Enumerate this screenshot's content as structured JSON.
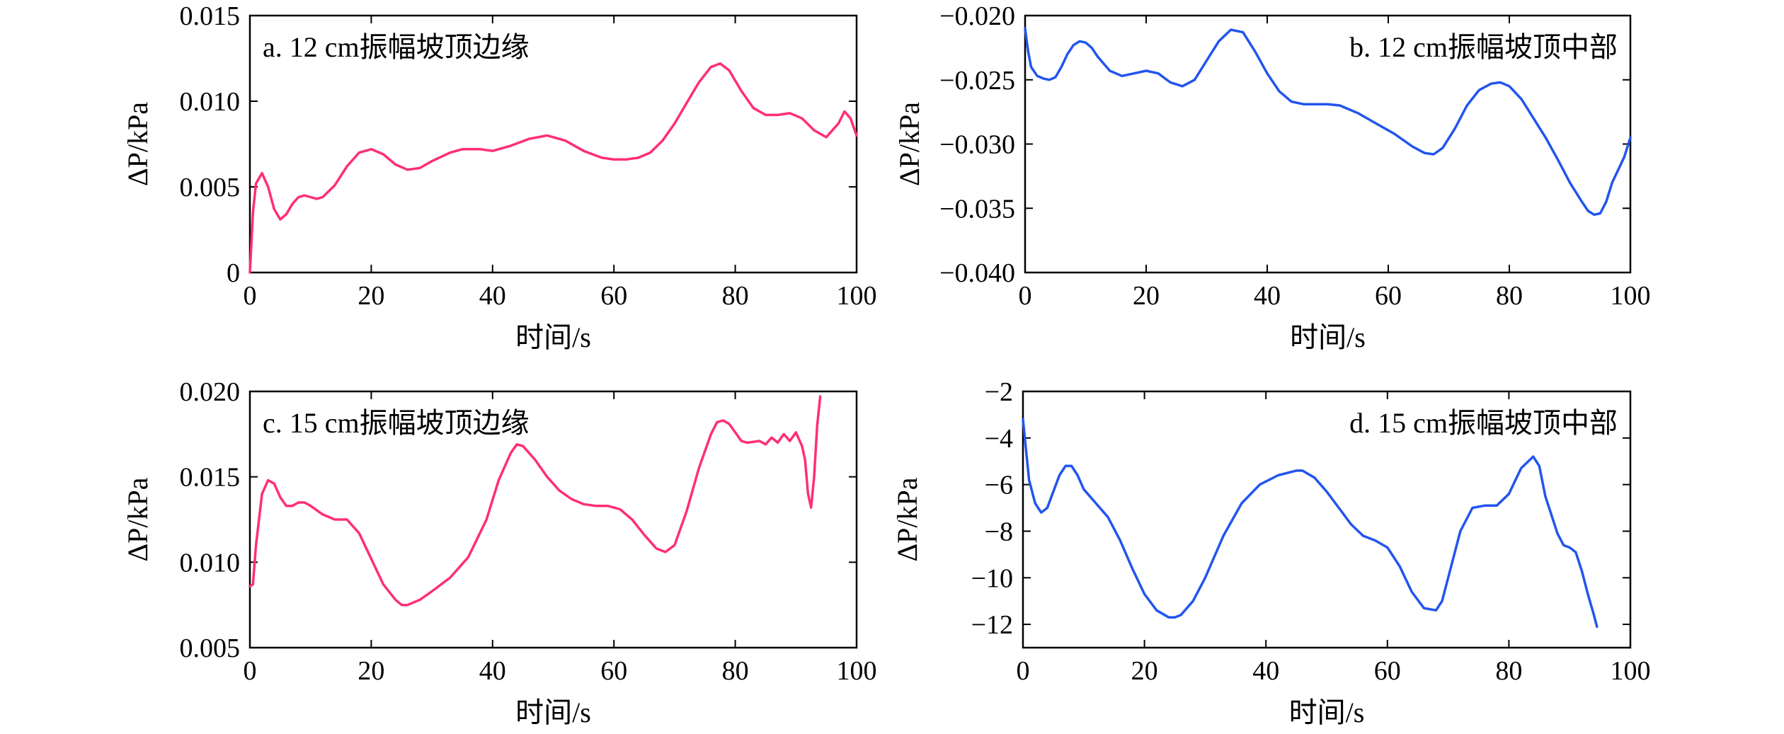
{
  "chart_data": [
    {
      "type": "line",
      "panel": "a",
      "title": "a. 12 cm振幅坡顶边缘",
      "title_pos": "top-left",
      "xlabel": "时间/s",
      "ylabel": "ΔP/kPa",
      "xlim": [
        0,
        100
      ],
      "ylim": [
        0,
        0.015
      ],
      "xticks": [
        "0",
        "20",
        "40",
        "60",
        "80",
        "100"
      ],
      "yticks": [
        "0",
        "0.005",
        "0.010",
        "0.015"
      ],
      "color": "#ff2e74",
      "series": [
        {
          "x": [
            0,
            0.5,
            1,
            2,
            3,
            4,
            5,
            6,
            7,
            8,
            9,
            10,
            11,
            12,
            14,
            16,
            18,
            20,
            22,
            24,
            26,
            28,
            30,
            33,
            35,
            38,
            40,
            43,
            46,
            49,
            52,
            55,
            58,
            60,
            62,
            64,
            66,
            68,
            70,
            72,
            74,
            76,
            77.5,
            79,
            81,
            83,
            85,
            87,
            89,
            91,
            93,
            95,
            97,
            98,
            99,
            100
          ],
          "y": [
            0.0,
            0.0035,
            0.0052,
            0.0058,
            0.005,
            0.0037,
            0.0031,
            0.0034,
            0.004,
            0.0044,
            0.0045,
            0.0044,
            0.0043,
            0.0044,
            0.0051,
            0.0062,
            0.007,
            0.0072,
            0.0069,
            0.0063,
            0.006,
            0.0061,
            0.0065,
            0.007,
            0.0072,
            0.0072,
            0.0071,
            0.0074,
            0.0078,
            0.008,
            0.0077,
            0.0071,
            0.0067,
            0.0066,
            0.0066,
            0.0067,
            0.007,
            0.0077,
            0.0087,
            0.0099,
            0.0111,
            0.012,
            0.0122,
            0.0118,
            0.0106,
            0.0096,
            0.0092,
            0.0092,
            0.0093,
            0.009,
            0.0083,
            0.0079,
            0.0087,
            0.0094,
            0.009,
            0.008
          ]
        }
      ]
    },
    {
      "type": "line",
      "panel": "b",
      "title": "b. 12 cm振幅坡顶中部",
      "title_pos": "top-right",
      "xlabel": "时间/s",
      "ylabel": "ΔP/kPa",
      "xlim": [
        0,
        100
      ],
      "ylim": [
        -0.04,
        -0.02
      ],
      "xticks": [
        "0",
        "20",
        "40",
        "60",
        "80",
        "100"
      ],
      "yticks": [
        "−0.040",
        "−0.035",
        "−0.030",
        "−0.025",
        "−0.020"
      ],
      "color": "#2255ee",
      "series": [
        {
          "x": [
            0,
            0.5,
            1,
            2,
            3,
            4,
            5,
            6,
            7,
            8,
            9,
            10,
            11,
            12,
            14,
            16,
            18,
            20,
            22,
            24,
            26,
            28,
            30,
            32,
            34,
            36,
            38,
            40,
            42,
            44,
            46,
            48,
            50,
            52,
            55,
            58,
            61,
            64,
            66,
            67.5,
            69,
            71,
            73,
            75,
            77,
            78.5,
            80,
            82,
            84,
            86,
            88,
            90,
            92,
            93,
            94,
            95,
            96,
            97,
            98,
            99,
            100
          ],
          "y": [
            -0.021,
            -0.0228,
            -0.024,
            -0.0247,
            -0.0249,
            -0.025,
            -0.0248,
            -0.024,
            -0.023,
            -0.0223,
            -0.022,
            -0.0221,
            -0.0225,
            -0.0232,
            -0.0243,
            -0.0247,
            -0.0245,
            -0.0243,
            -0.0245,
            -0.0252,
            -0.0255,
            -0.025,
            -0.0235,
            -0.022,
            -0.0211,
            -0.0213,
            -0.0228,
            -0.0245,
            -0.0259,
            -0.0267,
            -0.0269,
            -0.0269,
            -0.0269,
            -0.027,
            -0.0276,
            -0.0284,
            -0.0292,
            -0.0302,
            -0.0307,
            -0.0308,
            -0.0303,
            -0.0288,
            -0.027,
            -0.0258,
            -0.0253,
            -0.0252,
            -0.0255,
            -0.0265,
            -0.028,
            -0.0295,
            -0.0312,
            -0.033,
            -0.0345,
            -0.0352,
            -0.0355,
            -0.0354,
            -0.0345,
            -0.033,
            -0.032,
            -0.031,
            -0.0295
          ]
        }
      ]
    },
    {
      "type": "line",
      "panel": "c",
      "title": "c. 15 cm振幅坡顶边缘",
      "title_pos": "top-left",
      "xlabel": "时间/s",
      "ylabel": "ΔP/kPa",
      "xlim": [
        0,
        100
      ],
      "ylim": [
        0.005,
        0.02
      ],
      "xticks": [
        "0",
        "20",
        "40",
        "60",
        "80",
        "100"
      ],
      "yticks": [
        "0.005",
        "0.010",
        "0.015",
        "0.020"
      ],
      "color": "#ff2e74",
      "series": [
        {
          "x": [
            0,
            0.5,
            1,
            2,
            3,
            4,
            5,
            6,
            7,
            8,
            9,
            10,
            12,
            14,
            16,
            18,
            20,
            22,
            24,
            25,
            26,
            28,
            30,
            33,
            36,
            39,
            41,
            43,
            44,
            45,
            47,
            49,
            51,
            53,
            55,
            57,
            59,
            61,
            63,
            65,
            67,
            68.5,
            70,
            72,
            74,
            76,
            77,
            78,
            79,
            80,
            81,
            82,
            84,
            85,
            86,
            87,
            88,
            89,
            90,
            91,
            91.5,
            92,
            92.5,
            93,
            93.5,
            94
          ],
          "y": [
            0.0086,
            0.0087,
            0.011,
            0.014,
            0.0148,
            0.0146,
            0.0138,
            0.0133,
            0.0133,
            0.0135,
            0.0135,
            0.0133,
            0.0128,
            0.0125,
            0.0125,
            0.0117,
            0.0102,
            0.0087,
            0.0078,
            0.0075,
            0.0075,
            0.0078,
            0.0083,
            0.0091,
            0.0103,
            0.0125,
            0.0148,
            0.0164,
            0.0169,
            0.0168,
            0.016,
            0.015,
            0.0142,
            0.0137,
            0.0134,
            0.0133,
            0.0133,
            0.0131,
            0.0125,
            0.0116,
            0.0108,
            0.0106,
            0.011,
            0.013,
            0.0155,
            0.0175,
            0.0182,
            0.0183,
            0.0181,
            0.0176,
            0.0171,
            0.017,
            0.0171,
            0.0169,
            0.0173,
            0.017,
            0.0175,
            0.0171,
            0.0176,
            0.0168,
            0.016,
            0.014,
            0.0132,
            0.015,
            0.018,
            0.0197
          ]
        }
      ]
    },
    {
      "type": "line",
      "panel": "d",
      "title": "d. 15 cm振幅坡顶中部",
      "title_pos": "top-right",
      "xlabel": "时间/s",
      "ylabel": "ΔP/kPa",
      "xlim": [
        0,
        100
      ],
      "ylim": [
        -13,
        -2
      ],
      "xticks": [
        "0",
        "20",
        "40",
        "60",
        "80",
        "100"
      ],
      "yticks": [
        "−12",
        "−10",
        "−8",
        "−6",
        "−4",
        "−2"
      ],
      "color": "#2255ee",
      "series": [
        {
          "x": [
            0,
            0.5,
            1,
            2,
            3,
            4,
            5,
            6,
            7,
            8,
            9,
            10,
            12,
            14,
            16,
            18,
            20,
            22,
            24,
            25,
            26,
            28,
            30,
            33,
            36,
            39,
            42,
            45,
            46,
            48,
            50,
            52,
            54,
            56,
            58,
            60,
            62,
            64,
            66,
            68,
            69,
            70,
            72,
            74,
            76,
            78,
            80,
            82,
            84,
            85,
            86,
            88,
            89,
            90,
            91,
            92,
            93,
            94,
            94.5
          ],
          "y": [
            -3.2,
            -4.5,
            -5.8,
            -6.8,
            -7.2,
            -7.0,
            -6.3,
            -5.6,
            -5.2,
            -5.2,
            -5.6,
            -6.2,
            -6.8,
            -7.4,
            -8.4,
            -9.6,
            -10.7,
            -11.4,
            -11.7,
            -11.7,
            -11.6,
            -11.0,
            -10.0,
            -8.2,
            -6.8,
            -6.0,
            -5.6,
            -5.4,
            -5.4,
            -5.7,
            -6.3,
            -7.0,
            -7.7,
            -8.2,
            -8.4,
            -8.7,
            -9.5,
            -10.6,
            -11.3,
            -11.4,
            -11.0,
            -10.0,
            -8.0,
            -7.0,
            -6.9,
            -6.9,
            -6.4,
            -5.3,
            -4.8,
            -5.2,
            -6.5,
            -8.1,
            -8.6,
            -8.7,
            -8.9,
            -9.7,
            -10.7,
            -11.6,
            -12.1
          ]
        }
      ]
    }
  ]
}
